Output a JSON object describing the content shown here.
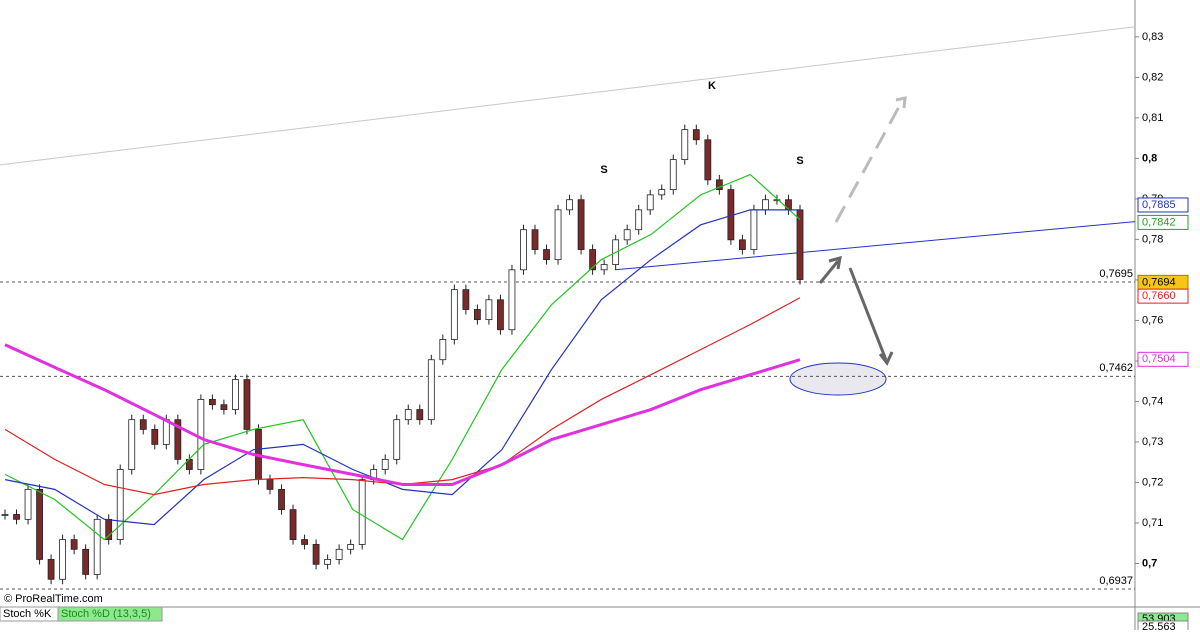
{
  "chart_data": {
    "type": "candlestick",
    "ylim": [
      0.69,
      0.8391
    ],
    "yticks": [
      {
        "value": 0.7,
        "label": "0,7"
      },
      {
        "value": 0.71,
        "label": "0,71"
      },
      {
        "value": 0.72,
        "label": "0,72"
      },
      {
        "value": 0.73,
        "label": "0,73"
      },
      {
        "value": 0.74,
        "label": "0,74"
      },
      {
        "value": 0.75,
        "label": "0,75"
      },
      {
        "value": 0.76,
        "label": "0,76"
      },
      {
        "value": 0.77,
        "label": "0,77"
      },
      {
        "value": 0.78,
        "label": "0,78"
      },
      {
        "value": 0.79,
        "label": "0,79"
      },
      {
        "value": 0.8,
        "label": "0,8"
      },
      {
        "value": 0.81,
        "label": "0,81"
      },
      {
        "value": 0.82,
        "label": "0,82"
      },
      {
        "value": 0.83,
        "label": "0,83"
      }
    ],
    "price": {
      "up_color": "#ffffff",
      "down_color": "#7a2a2a",
      "values": [
        0.7121,
        0.7109,
        0.7183,
        0.701,
        0.6961,
        0.7059,
        0.7035,
        0.6973,
        0.7109,
        0.7059,
        0.7232,
        0.7355,
        0.7331,
        0.7294,
        0.7355,
        0.7257,
        0.7232,
        0.7405,
        0.7392,
        0.738,
        0.7454,
        0.7331,
        0.7207,
        0.7183,
        0.7133,
        0.7059,
        0.7047,
        0.6998,
        0.701,
        0.7035,
        0.7047,
        0.7207,
        0.7232,
        0.7257,
        0.7355,
        0.738,
        0.7355,
        0.7503,
        0.7553,
        0.7676,
        0.7627,
        0.7602,
        0.7651,
        0.7577,
        0.7725,
        0.7824,
        0.7775,
        0.775,
        0.7873,
        0.7898,
        0.7775,
        0.7725,
        0.7738,
        0.7799,
        0.7824,
        0.7873,
        0.791,
        0.7923,
        0.7997,
        0.8071,
        0.8046,
        0.7947,
        0.7923,
        0.7799,
        0.7775,
        0.7873,
        0.7898,
        0.7898,
        0.7873,
        0.7701
      ]
    },
    "series": [
      {
        "name": "MA green",
        "color": "#22c422",
        "values": [
          0.722,
          0.7158,
          0.7059,
          0.717,
          0.7294,
          0.7331,
          0.7355,
          0.7133,
          0.7059,
          0.7257,
          0.7479,
          0.7639,
          0.775,
          0.7812,
          0.791,
          0.796,
          0.7849
        ]
      },
      {
        "name": "MA blue",
        "color": "#2233bb",
        "values": [
          0.7207,
          0.7183,
          0.7109,
          0.7096,
          0.7207,
          0.7281,
          0.7294,
          0.7232,
          0.7183,
          0.717,
          0.7281,
          0.7479,
          0.7651,
          0.775,
          0.7836,
          0.7873,
          0.7873
        ]
      },
      {
        "name": "MA red",
        "color": "#dd2222",
        "values": [
          0.7331,
          0.7257,
          0.7195,
          0.717,
          0.7195,
          0.7207,
          0.7212,
          0.7207,
          0.7195,
          0.7207,
          0.7244,
          0.7331,
          0.7405,
          0.7466,
          0.7528,
          0.759,
          0.7656
        ]
      },
      {
        "name": "MA magenta",
        "color": "#e030e0",
        "values": [
          0.754,
          0.7484,
          0.7429,
          0.7368,
          0.7306,
          0.7269,
          0.7244,
          0.722,
          0.7195,
          0.7195,
          0.7244,
          0.7306,
          0.7343,
          0.738,
          0.7429,
          0.7466,
          0.7503
        ]
      }
    ],
    "trendlines": [
      {
        "color": "#c8c8c8",
        "values": [
          0.7984,
          0.8325
        ]
      },
      {
        "color": "#2233cc",
        "values": [
          0.7725,
          0.7844
        ]
      }
    ],
    "levels": [
      {
        "value": 0.7695,
        "label": "0,7695"
      },
      {
        "value": 0.7462,
        "label": "0,7462"
      },
      {
        "value": 0.6937,
        "label": "0,6937"
      }
    ],
    "tags": [
      {
        "value": 0.7885,
        "label": "0,7885",
        "color": "#2233bb",
        "bg": "#ffffff"
      },
      {
        "value": 0.7842,
        "label": "0,7842",
        "color": "#22a022",
        "bg": "#ffffff"
      },
      {
        "value": 0.7694,
        "label": "0,7694",
        "color": "#000000",
        "bg": "#f5c518"
      },
      {
        "value": 0.766,
        "label": "0,7660",
        "color": "#dd2222",
        "bg": "#ffffff"
      },
      {
        "value": 0.7504,
        "label": "0,7504",
        "color": "#e030e0",
        "bg": "#ffffff"
      }
    ],
    "annotations": [
      "S",
      "K",
      "S"
    ],
    "copyright": "© ProRealTime.com",
    "stoch": {
      "k_label": "Stoch %K",
      "d_label": "Stoch %D (13,3,5)",
      "values": [
        53.903,
        25.563
      ],
      "value_labels": [
        "53,903",
        "25,563"
      ]
    }
  }
}
